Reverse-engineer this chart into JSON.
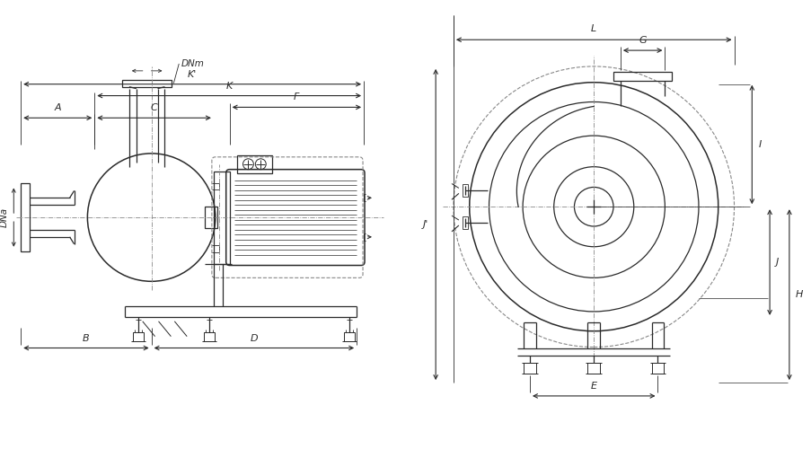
{
  "bg_color": "#ffffff",
  "line_color": "#2a2a2a",
  "dim_color": "#2a2a2a",
  "dash_color": "#888888",
  "fig_width": 9.04,
  "fig_height": 5.0,
  "dpi": 100,
  "dim_labels": {
    "Kprime": "K'",
    "K": "K",
    "F": "F",
    "A": "A",
    "C": "C",
    "DNm": "DNm",
    "DNa": "DNa",
    "B": "B",
    "D": "D",
    "L": "L",
    "G": "G",
    "I": "I",
    "J": "J",
    "H": "H",
    "Jprime": "J'",
    "E": "E"
  }
}
